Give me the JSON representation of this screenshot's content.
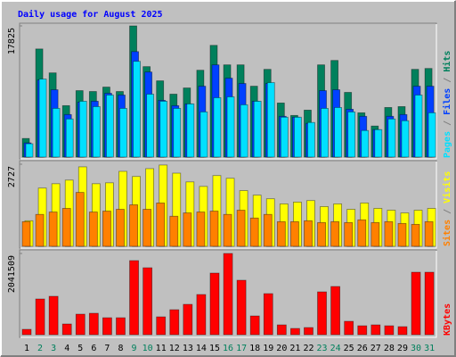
{
  "chart_data": [
    {
      "type": "bar",
      "title": "Daily usage for August 2025",
      "ylim": [
        0,
        17825
      ],
      "yticks": [
        17825
      ],
      "series": [
        {
          "name": "Hits",
          "color": "#00805c",
          "values": [
            2530,
            14690,
            11440,
            6990,
            9030,
            8910,
            9510,
            8910,
            17825,
            12290,
            10360,
            8550,
            9390,
            11800,
            15180,
            12530,
            12530,
            9630,
            11920,
            7350,
            5660,
            6380,
            12530,
            13130,
            8790,
            6020,
            4220,
            6740,
            6860,
            11920,
            12040
          ]
        },
        {
          "name": "Files",
          "color": "#0040ff",
          "values": [
            1930,
            10480,
            9150,
            5780,
            7470,
            7590,
            8670,
            8430,
            14330,
            11560,
            7710,
            6990,
            7230,
            9630,
            12530,
            10720,
            10000,
            7590,
            10000,
            5540,
            5420,
            4580,
            9030,
            9150,
            6500,
            5540,
            3730,
            5540,
            5780,
            9630,
            9630
          ]
        },
        {
          "name": "Pages",
          "color": "#00e0ff",
          "values": [
            1810,
            10600,
            6620,
            5180,
            7590,
            6860,
            8430,
            6620,
            13010,
            8550,
            7590,
            6620,
            7230,
            6140,
            8070,
            8190,
            7110,
            7590,
            10120,
            5420,
            5420,
            4700,
            6620,
            6740,
            6140,
            3610,
            3730,
            5180,
            4940,
            8430,
            6020
          ]
        }
      ]
    },
    {
      "type": "bar",
      "ylim": [
        0,
        2727
      ],
      "yticks": [
        2727
      ],
      "series": [
        {
          "name": "Visits",
          "color": "#ffff00",
          "values": [
            850,
            1935,
            2080,
            2200,
            2640,
            2080,
            2110,
            2490,
            2320,
            2580,
            2700,
            2430,
            2140,
            1990,
            2350,
            2260,
            1850,
            1700,
            1580,
            1410,
            1470,
            1520,
            1320,
            1410,
            1230,
            1440,
            1260,
            1200,
            1110,
            1200,
            1260
          ]
        },
        {
          "name": "Sites",
          "color": "#ff8000",
          "values": [
            820,
            1060,
            1140,
            1260,
            1790,
            1140,
            1170,
            1230,
            1380,
            1230,
            1440,
            1000,
            1110,
            1140,
            1170,
            1060,
            1200,
            940,
            1060,
            820,
            820,
            850,
            790,
            820,
            790,
            880,
            790,
            820,
            760,
            730,
            820
          ]
        }
      ]
    },
    {
      "type": "bar",
      "ylim": [
        0,
        2041509
      ],
      "yticks": [
        2041509
      ],
      "categories": [
        "1",
        "2",
        "3",
        "4",
        "5",
        "6",
        "7",
        "8",
        "9",
        "10",
        "11",
        "12",
        "13",
        "14",
        "15",
        "16",
        "17",
        "18",
        "19",
        "20",
        "21",
        "22",
        "23",
        "24",
        "25",
        "26",
        "27",
        "28",
        "29",
        "30",
        "31"
      ],
      "category_colors": [
        "#000000",
        "#00805c",
        "#00805c",
        "#000000",
        "#000000",
        "#000000",
        "#000000",
        "#000000",
        "#00805c",
        "#00805c",
        "#000000",
        "#000000",
        "#000000",
        "#000000",
        "#000000",
        "#00805c",
        "#00805c",
        "#000000",
        "#000000",
        "#000000",
        "#000000",
        "#000000",
        "#00805c",
        "#00805c",
        "#000000",
        "#000000",
        "#000000",
        "#000000",
        "#000000",
        "#00805c",
        "#00805c"
      ],
      "series": [
        {
          "name": "KBytes",
          "color": "#ff0000",
          "values": [
            134600,
            897400,
            964700,
            269200,
            516000,
            538400,
            426300,
            426300,
            1862100,
            1682600,
            448700,
            628200,
            762800,
            1009600,
            1548000,
            2041509,
            1368500,
            471100,
            1032000,
            246800,
            157000,
            179500,
            1076800,
            1211500,
            336500,
            224300,
            246800,
            224300,
            201900,
            1570400,
            1570400
          ]
        }
      ]
    }
  ]
}
